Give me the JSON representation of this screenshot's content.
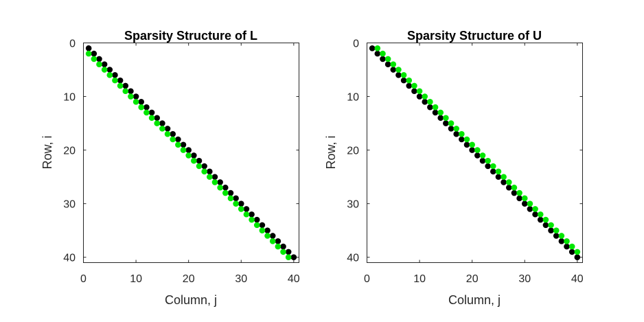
{
  "chart_data": [
    {
      "type": "scatter",
      "title": "Sparsity Structure of L",
      "xlabel": "Column, j",
      "ylabel": "Row, i",
      "xlim": [
        0,
        41
      ],
      "ylim": [
        0,
        41
      ],
      "y_reversed": true,
      "xticks": [
        0,
        10,
        20,
        30,
        40
      ],
      "yticks": [
        0,
        10,
        20,
        30,
        40
      ],
      "grid": false,
      "series": [
        {
          "color": "#000000",
          "rows": [
            1,
            2,
            3,
            4,
            5,
            6,
            7,
            8,
            9,
            10,
            11,
            12,
            13,
            14,
            15,
            16,
            17,
            18,
            19,
            20,
            21,
            22,
            23,
            24,
            25,
            26,
            27,
            28,
            29,
            30,
            31,
            32,
            33,
            34,
            35,
            36,
            37,
            38,
            39,
            40
          ],
          "cols": [
            1,
            2,
            3,
            4,
            5,
            6,
            7,
            8,
            9,
            10,
            11,
            12,
            13,
            14,
            15,
            16,
            17,
            18,
            19,
            20,
            21,
            22,
            23,
            24,
            25,
            26,
            27,
            28,
            29,
            30,
            31,
            32,
            33,
            34,
            35,
            36,
            37,
            38,
            39,
            40
          ]
        },
        {
          "color": "#00e600",
          "rows": [
            2,
            3,
            4,
            5,
            6,
            7,
            8,
            9,
            10,
            11,
            12,
            13,
            14,
            15,
            16,
            17,
            18,
            19,
            20,
            21,
            22,
            23,
            24,
            25,
            26,
            27,
            28,
            29,
            30,
            31,
            32,
            33,
            34,
            35,
            36,
            37,
            38,
            39,
            40
          ],
          "cols": [
            1,
            2,
            3,
            4,
            5,
            6,
            7,
            8,
            9,
            10,
            11,
            12,
            13,
            14,
            15,
            16,
            17,
            18,
            19,
            20,
            21,
            22,
            23,
            24,
            25,
            26,
            27,
            28,
            29,
            30,
            31,
            32,
            33,
            34,
            35,
            36,
            37,
            38,
            39
          ]
        }
      ]
    },
    {
      "type": "scatter",
      "title": "Sparsity Structure of U",
      "xlabel": "Column, j",
      "ylabel": "Row, i",
      "xlim": [
        0,
        41
      ],
      "ylim": [
        0,
        41
      ],
      "y_reversed": true,
      "xticks": [
        0,
        10,
        20,
        30,
        40
      ],
      "yticks": [
        0,
        10,
        20,
        30,
        40
      ],
      "grid": false,
      "series": [
        {
          "color": "#000000",
          "rows": [
            1,
            2,
            3,
            4,
            5,
            6,
            7,
            8,
            9,
            10,
            11,
            12,
            13,
            14,
            15,
            16,
            17,
            18,
            19,
            20,
            21,
            22,
            23,
            24,
            25,
            26,
            27,
            28,
            29,
            30,
            31,
            32,
            33,
            34,
            35,
            36,
            37,
            38,
            39,
            40
          ],
          "cols": [
            1,
            2,
            3,
            4,
            5,
            6,
            7,
            8,
            9,
            10,
            11,
            12,
            13,
            14,
            15,
            16,
            17,
            18,
            19,
            20,
            21,
            22,
            23,
            24,
            25,
            26,
            27,
            28,
            29,
            30,
            31,
            32,
            33,
            34,
            35,
            36,
            37,
            38,
            39,
            40
          ]
        },
        {
          "color": "#00e600",
          "rows": [
            1,
            2,
            3,
            4,
            5,
            6,
            7,
            8,
            9,
            10,
            11,
            12,
            13,
            14,
            15,
            16,
            17,
            18,
            19,
            20,
            21,
            22,
            23,
            24,
            25,
            26,
            27,
            28,
            29,
            30,
            31,
            32,
            33,
            34,
            35,
            36,
            37,
            38,
            39
          ],
          "cols": [
            2,
            3,
            4,
            5,
            6,
            7,
            8,
            9,
            10,
            11,
            12,
            13,
            14,
            15,
            16,
            17,
            18,
            19,
            20,
            21,
            22,
            23,
            24,
            25,
            26,
            27,
            28,
            29,
            30,
            31,
            32,
            33,
            34,
            35,
            36,
            37,
            38,
            39,
            40
          ]
        }
      ]
    }
  ]
}
